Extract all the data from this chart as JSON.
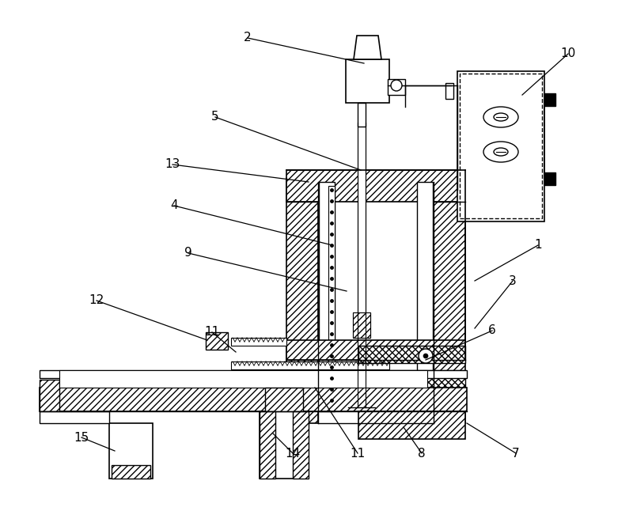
{
  "bg": "#ffffff",
  "lc": "#000000",
  "labels": [
    [
      "2",
      313,
      48,
      460,
      80
    ],
    [
      "5",
      272,
      148,
      456,
      215
    ],
    [
      "13",
      218,
      208,
      390,
      230
    ],
    [
      "4",
      220,
      260,
      420,
      310
    ],
    [
      "9",
      238,
      320,
      438,
      368
    ],
    [
      "1",
      680,
      310,
      600,
      355
    ],
    [
      "3",
      648,
      355,
      600,
      415
    ],
    [
      "6",
      622,
      418,
      538,
      455
    ],
    [
      "10",
      718,
      68,
      660,
      120
    ],
    [
      "12",
      122,
      380,
      262,
      430
    ],
    [
      "11",
      268,
      420,
      298,
      445
    ],
    [
      "11",
      452,
      573,
      398,
      490
    ],
    [
      "14",
      370,
      573,
      345,
      548
    ],
    [
      "8",
      533,
      573,
      510,
      540
    ],
    [
      "7",
      652,
      573,
      590,
      535
    ],
    [
      "15",
      103,
      553,
      145,
      570
    ]
  ]
}
